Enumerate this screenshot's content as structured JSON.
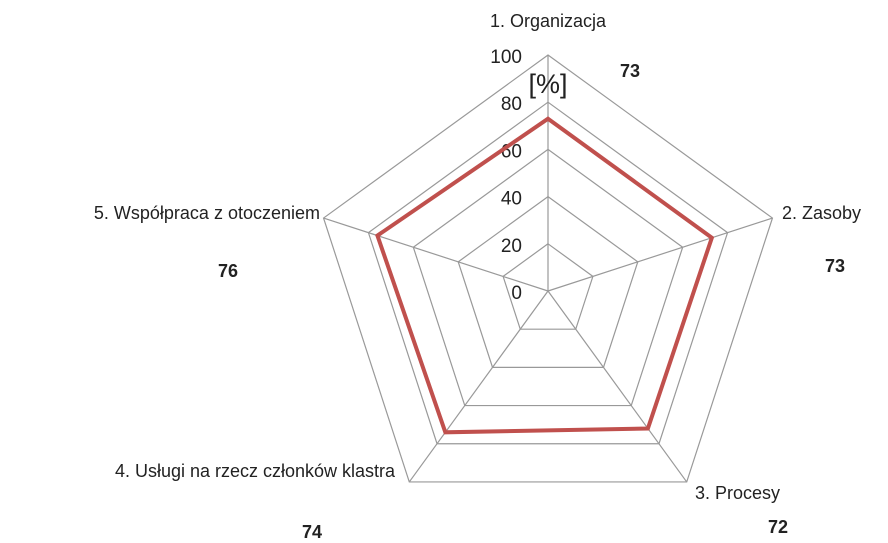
{
  "chart_data": {
    "type": "radar",
    "categories": [
      "1. Organizacja",
      "2. Zasoby",
      "3. Procesy",
      "4. Usługi na rzecz członków klastra",
      "5. Współpraca z otoczeniem"
    ],
    "values": [
      73,
      73,
      72,
      74,
      76
    ],
    "color": "#c0504d",
    "axis_label": "[%]",
    "ylim": [
      0,
      100
    ],
    "yticks": [
      0,
      20,
      40,
      60,
      80,
      100
    ],
    "grid": true
  }
}
